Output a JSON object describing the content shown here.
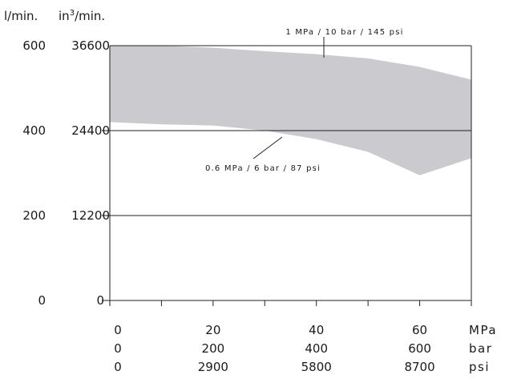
{
  "chart_data": {
    "type": "area",
    "title": "",
    "y_units": {
      "primary": "l/min.",
      "secondary_base": "in",
      "secondary_sup": "3",
      "secondary_suffix": "/min."
    },
    "y_ticks": [
      {
        "value": 0,
        "label": "0",
        "label2": "0"
      },
      {
        "value": 200,
        "label": "200",
        "label2": "12200"
      },
      {
        "value": 400,
        "label": "400",
        "label2": "24400"
      },
      {
        "value": 600,
        "label": "600",
        "label2": "36600"
      }
    ],
    "ylim": [
      0,
      600
    ],
    "xlim": [
      0,
      70
    ],
    "x_minor_ticks": [
      0,
      10,
      20,
      30,
      40,
      50,
      60,
      70
    ],
    "x_label_rows": [
      {
        "unit": "MPa",
        "labels": [
          {
            "x": 0,
            "text": "0"
          },
          {
            "x": 20,
            "text": "20"
          },
          {
            "x": 40,
            "text": "40"
          },
          {
            "x": 60,
            "text": "60"
          }
        ]
      },
      {
        "unit": "bar",
        "labels": [
          {
            "x": 0,
            "text": "0"
          },
          {
            "x": 20,
            "text": "200"
          },
          {
            "x": 40,
            "text": "400"
          },
          {
            "x": 60,
            "text": "600"
          }
        ]
      },
      {
        "unit": "psi",
        "labels": [
          {
            "x": 0,
            "text": "0"
          },
          {
            "x": 20,
            "text": "2900"
          },
          {
            "x": 40,
            "text": "5800"
          },
          {
            "x": 60,
            "text": "8700"
          }
        ]
      }
    ],
    "series": [
      {
        "name": "1 MPa / 10 bar / 145 psi",
        "x": [
          0,
          10,
          20,
          30,
          40,
          50,
          60,
          70
        ],
        "y": [
          600,
          600,
          595,
          587,
          580,
          570,
          550,
          520
        ]
      },
      {
        "name": "0.6 MPa / 6 bar / 87 psi",
        "x": [
          0,
          10,
          20,
          30,
          40,
          50,
          60,
          70
        ],
        "y": [
          420,
          415,
          412,
          400,
          380,
          350,
          295,
          335
        ]
      }
    ],
    "band_color": "#cacacf",
    "grid": true
  }
}
